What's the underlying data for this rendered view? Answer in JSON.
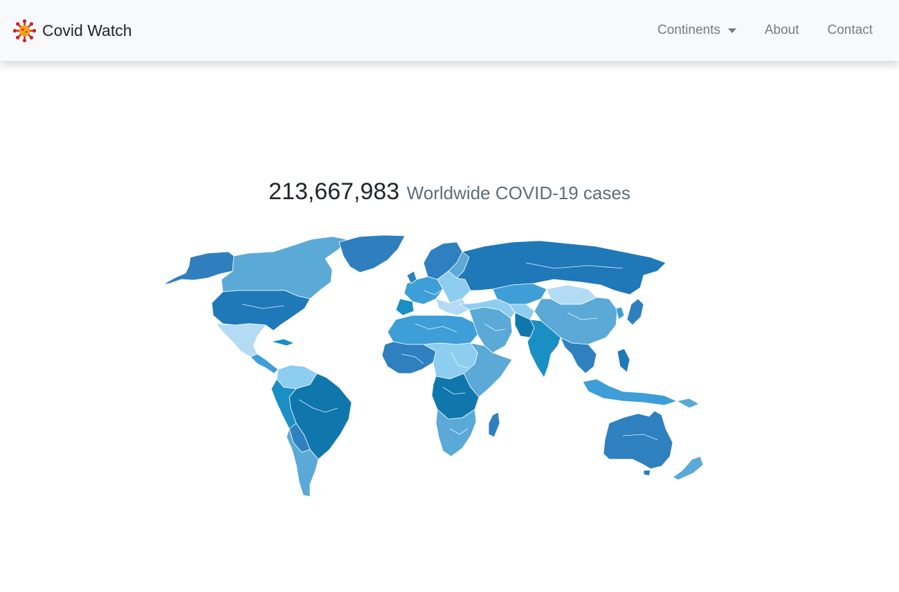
{
  "brand": {
    "title": "Covid Watch",
    "logo_icon": "virus-icon",
    "colors": {
      "core": "#f2a40f",
      "spikes": "#d81f26"
    }
  },
  "nav": {
    "items": [
      {
        "label": "Continents",
        "dropdown": true
      },
      {
        "label": "About"
      },
      {
        "label": "Contact"
      }
    ]
  },
  "headline": {
    "count": "213,667,983",
    "label": "Worldwide COVID-19 cases"
  },
  "map": {
    "type": "choropleth-world-map",
    "palette": [
      "#b3dbf3",
      "#8ccdf0",
      "#5aa9d6",
      "#3d9ed8",
      "#2e80bf",
      "#1f78b8",
      "#1a8fc4",
      "#1077ac"
    ]
  }
}
